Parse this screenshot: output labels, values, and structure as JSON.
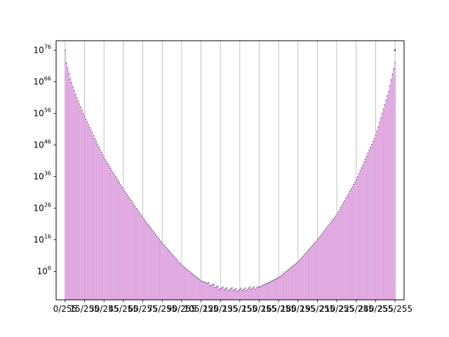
{
  "chart_data": {
    "type": "bar",
    "scale": {
      "y": "log"
    },
    "ylim_log10": [
      -3,
      79
    ],
    "y_ticks": [
      {
        "base": "10",
        "exp": "6",
        "log10": 6
      },
      {
        "base": "10",
        "exp": "16",
        "log10": 16
      },
      {
        "base": "10",
        "exp": "26",
        "log10": 26
      },
      {
        "base": "10",
        "exp": "36",
        "log10": 36
      },
      {
        "base": "10",
        "exp": "46",
        "log10": 46
      },
      {
        "base": "10",
        "exp": "56",
        "log10": 56
      },
      {
        "base": "10",
        "exp": "66",
        "log10": 66
      },
      {
        "base": "10",
        "exp": "76",
        "log10": 76
      }
    ],
    "x_range": [
      -7,
      262
    ],
    "x_ticks": [
      {
        "label": "0/255",
        "x": 0
      },
      {
        "label": "15/255",
        "x": 15
      },
      {
        "label": "30/255",
        "x": 30
      },
      {
        "label": "45/255",
        "x": 45
      },
      {
        "label": "60/255",
        "x": 60
      },
      {
        "label": "75/255",
        "x": 75
      },
      {
        "label": "90/255",
        "x": 90
      },
      {
        "label": "105/255",
        "x": 105
      },
      {
        "label": "120/255",
        "x": 120
      },
      {
        "label": "135/255",
        "x": 135
      },
      {
        "label": "150/255",
        "x": 150
      },
      {
        "label": "165/255",
        "x": 165
      },
      {
        "label": "180/255",
        "x": 180
      },
      {
        "label": "195/255",
        "x": 195
      },
      {
        "label": "210/255",
        "x": 210
      },
      {
        "label": "225/255",
        "x": 225
      },
      {
        "label": "240/255",
        "x": 240
      },
      {
        "label": "255/255",
        "x": 255
      }
    ],
    "grid": {
      "x": true,
      "y": false
    },
    "bar_color": "#dda0dd",
    "marker_color": "#3a2a5a",
    "profile": {
      "description_points": [
        {
          "x": 0,
          "log10": 76
        },
        {
          "x": 1,
          "log10": 72
        },
        {
          "x": 4,
          "log10": 67
        },
        {
          "x": 8,
          "log10": 62
        },
        {
          "x": 15,
          "log10": 55
        },
        {
          "x": 30,
          "log10": 42
        },
        {
          "x": 45,
          "log10": 32
        },
        {
          "x": 60,
          "log10": 23
        },
        {
          "x": 75,
          "log10": 15
        },
        {
          "x": 90,
          "log10": 8
        },
        {
          "x": 105,
          "log10": 3
        },
        {
          "x": 120,
          "log10": 0.5
        },
        {
          "x": 135,
          "log10": 0
        },
        {
          "x": 150,
          "log10": 1
        },
        {
          "x": 165,
          "log10": 4
        },
        {
          "x": 180,
          "log10": 9
        },
        {
          "x": 195,
          "log10": 16
        },
        {
          "x": 210,
          "log10": 24
        },
        {
          "x": 225,
          "log10": 35
        },
        {
          "x": 240,
          "log10": 49
        },
        {
          "x": 250,
          "log10": 63
        },
        {
          "x": 255,
          "log10": 72
        }
      ],
      "outlier": {
        "x": 255,
        "log10": 76
      }
    }
  }
}
